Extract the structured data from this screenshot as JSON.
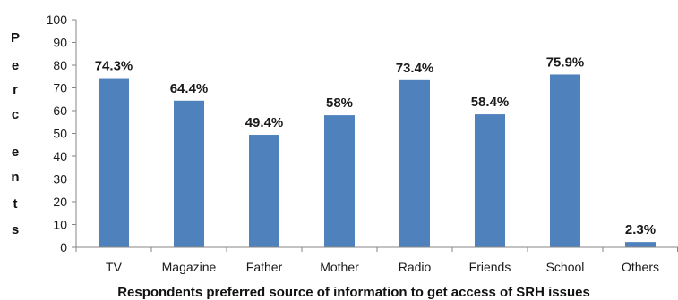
{
  "chart_data": {
    "type": "bar",
    "categories": [
      "TV",
      "Magazine",
      "Father",
      "Mother",
      "Radio",
      "Friends",
      "School",
      "Others"
    ],
    "values": [
      74.3,
      64.4,
      49.4,
      58,
      73.4,
      58.4,
      75.9,
      2.3
    ],
    "data_labels": [
      "74.3%",
      "64.4%",
      "49.4%",
      "58%",
      "73.4%",
      "58.4%",
      "75.9%",
      "2.3%"
    ],
    "xlabel": "Respondents preferred  source of information to get access of SRH issues",
    "ylabel": "Percents",
    "ylabel_letters": [
      "P",
      "e",
      "r",
      "c",
      "e",
      "n",
      "t",
      "s"
    ],
    "ylim": [
      0,
      100
    ],
    "yticks": [
      0,
      10,
      20,
      30,
      40,
      50,
      60,
      70,
      80,
      90,
      100
    ],
    "grid": false,
    "legend": "none",
    "bar_color": "#4f81bd",
    "axis_color": "#868686"
  }
}
